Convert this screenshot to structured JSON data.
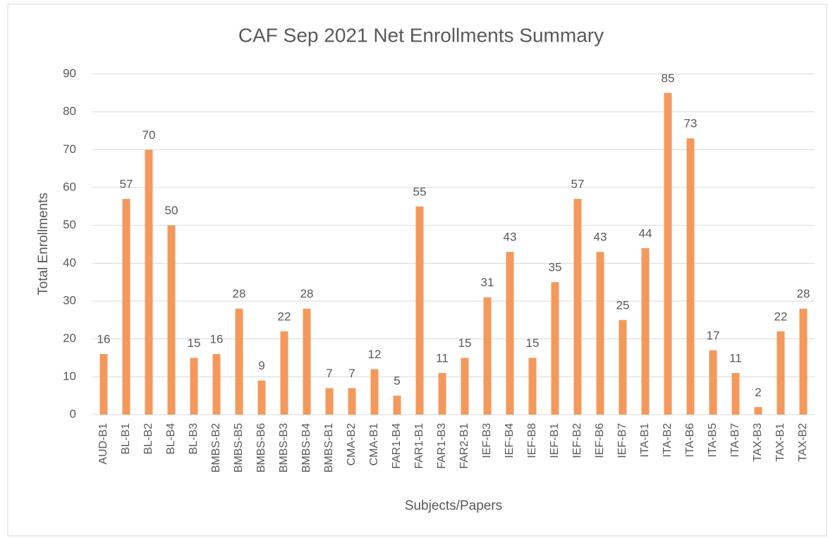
{
  "chart_data": {
    "type": "bar",
    "title": "CAF Sep 2021 Net Enrollments Summary",
    "x_label": "Subjects/Papers",
    "y_label": "Total Enrollments",
    "categories": [
      "AUD-B1",
      "BL-B1",
      "BL-B2",
      "BL-B4",
      "BL-B3",
      "BMBS-B2",
      "BMBS-B5",
      "BMBS-B6",
      "BMBS-B3",
      "BMBS-B4",
      "BMBS-B1",
      "CMA-B2",
      "CMA-B1",
      "FAR1-B4",
      "FAR1-B1",
      "FAR1-B3",
      "FAR2-B1",
      "IEF-B3",
      "IEF-B4",
      "IEF-B8",
      "IEF-B1",
      "IEF-B2",
      "IEF-B6",
      "IEF-B7",
      "ITA-B1",
      "ITA-B2",
      "ITA-B6",
      "ITA-B5",
      "ITA-B7",
      "TAX-B3",
      "TAX-B1",
      "TAX-B2"
    ],
    "values": [
      16,
      57,
      70,
      50,
      15,
      16,
      28,
      9,
      22,
      28,
      7,
      7,
      12,
      5,
      55,
      11,
      15,
      31,
      43,
      15,
      35,
      57,
      43,
      25,
      44,
      85,
      73,
      17,
      11,
      2,
      22,
      28
    ],
    "color": "#f4995b",
    "ylim": [
      0,
      90
    ],
    "yticks": [
      0,
      10,
      20,
      30,
      40,
      50,
      60,
      70,
      80,
      90
    ],
    "grid": true
  }
}
